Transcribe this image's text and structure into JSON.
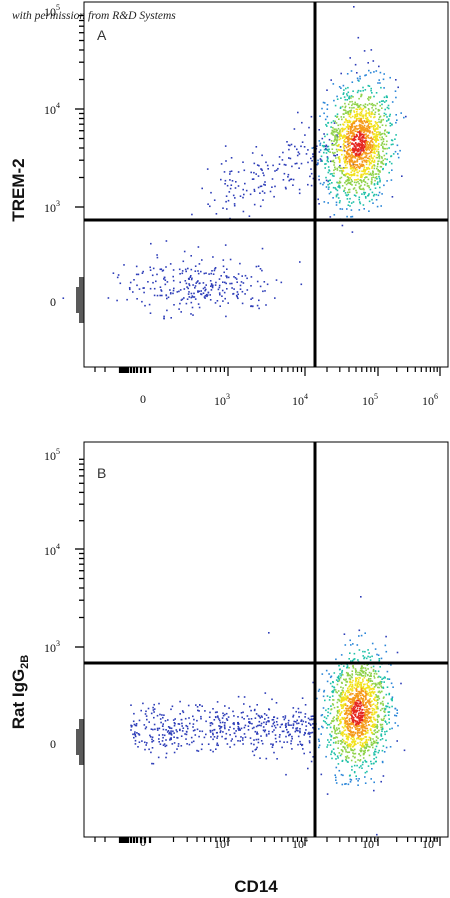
{
  "credit": "with permission from R&D Systems",
  "x_axis_label": "CD14",
  "colors": {
    "low_density": "#2d3db8",
    "mid_density": "#1fc0a8",
    "high_density": "#f2e21c",
    "peak_density": "#e6261f",
    "gate_lines": "#000000"
  },
  "chart_data": [
    {
      "type": "scatter",
      "panel_label": "A",
      "xlabel": "",
      "ylabel": "TREM-2",
      "x_scale": "biexponential (log above ~10^3)",
      "y_scale": "biexponential (log above ~10^3)",
      "x_ticks": [
        "0",
        "10^3",
        "10^4",
        "10^5",
        "10^6"
      ],
      "y_ticks": [
        "0",
        "10^3",
        "10^4",
        "10^5"
      ],
      "gate": {
        "x": 15000,
        "y": 650
      },
      "populations": [
        {
          "description": "CD14+ TREM-2+ main cluster",
          "x_center": 60000,
          "y_center": 3800,
          "approx_fraction": 0.82
        },
        {
          "description": "CD14- TREM-2 low cluster",
          "x_center": 500,
          "y_center": 150,
          "approx_fraction": 0.1
        },
        {
          "description": "diagonal scatter between clusters",
          "x_range": [
            2000,
            30000
          ],
          "y_range": [
            800,
            3000
          ],
          "approx_fraction": 0.08
        }
      ]
    },
    {
      "type": "scatter",
      "panel_label": "B",
      "xlabel": "CD14",
      "ylabel": "Rat IgG2B",
      "x_scale": "biexponential (log above ~10^3)",
      "y_scale": "biexponential (log above ~10^3)",
      "x_ticks": [
        "0",
        "10^3",
        "10^4",
        "10^5",
        "10^6"
      ],
      "y_ticks": [
        "0",
        "10^3",
        "10^4",
        "10^5"
      ],
      "gate": {
        "x": 15000,
        "y": 650
      },
      "populations": [
        {
          "description": "CD14+ isotype low cluster",
          "x_center": 65000,
          "y_center": 250,
          "approx_fraction": 0.85
        },
        {
          "description": "CD14- isotype low band",
          "x_range": [
            0,
            15000
          ],
          "y_range": [
            0,
            400
          ],
          "approx_fraction": 0.15
        }
      ]
    }
  ],
  "axis_text": {
    "ten": "10",
    "zero": "0",
    "exp": [
      "3",
      "4",
      "5",
      "6"
    ],
    "yexp": [
      "3",
      "4",
      "5"
    ]
  },
  "panel_a": {
    "label": "A",
    "ylabel": "TREM-2"
  },
  "panel_b": {
    "label": "B",
    "ylabel_main": "Rat IgG",
    "ylabel_sub": "2B"
  }
}
